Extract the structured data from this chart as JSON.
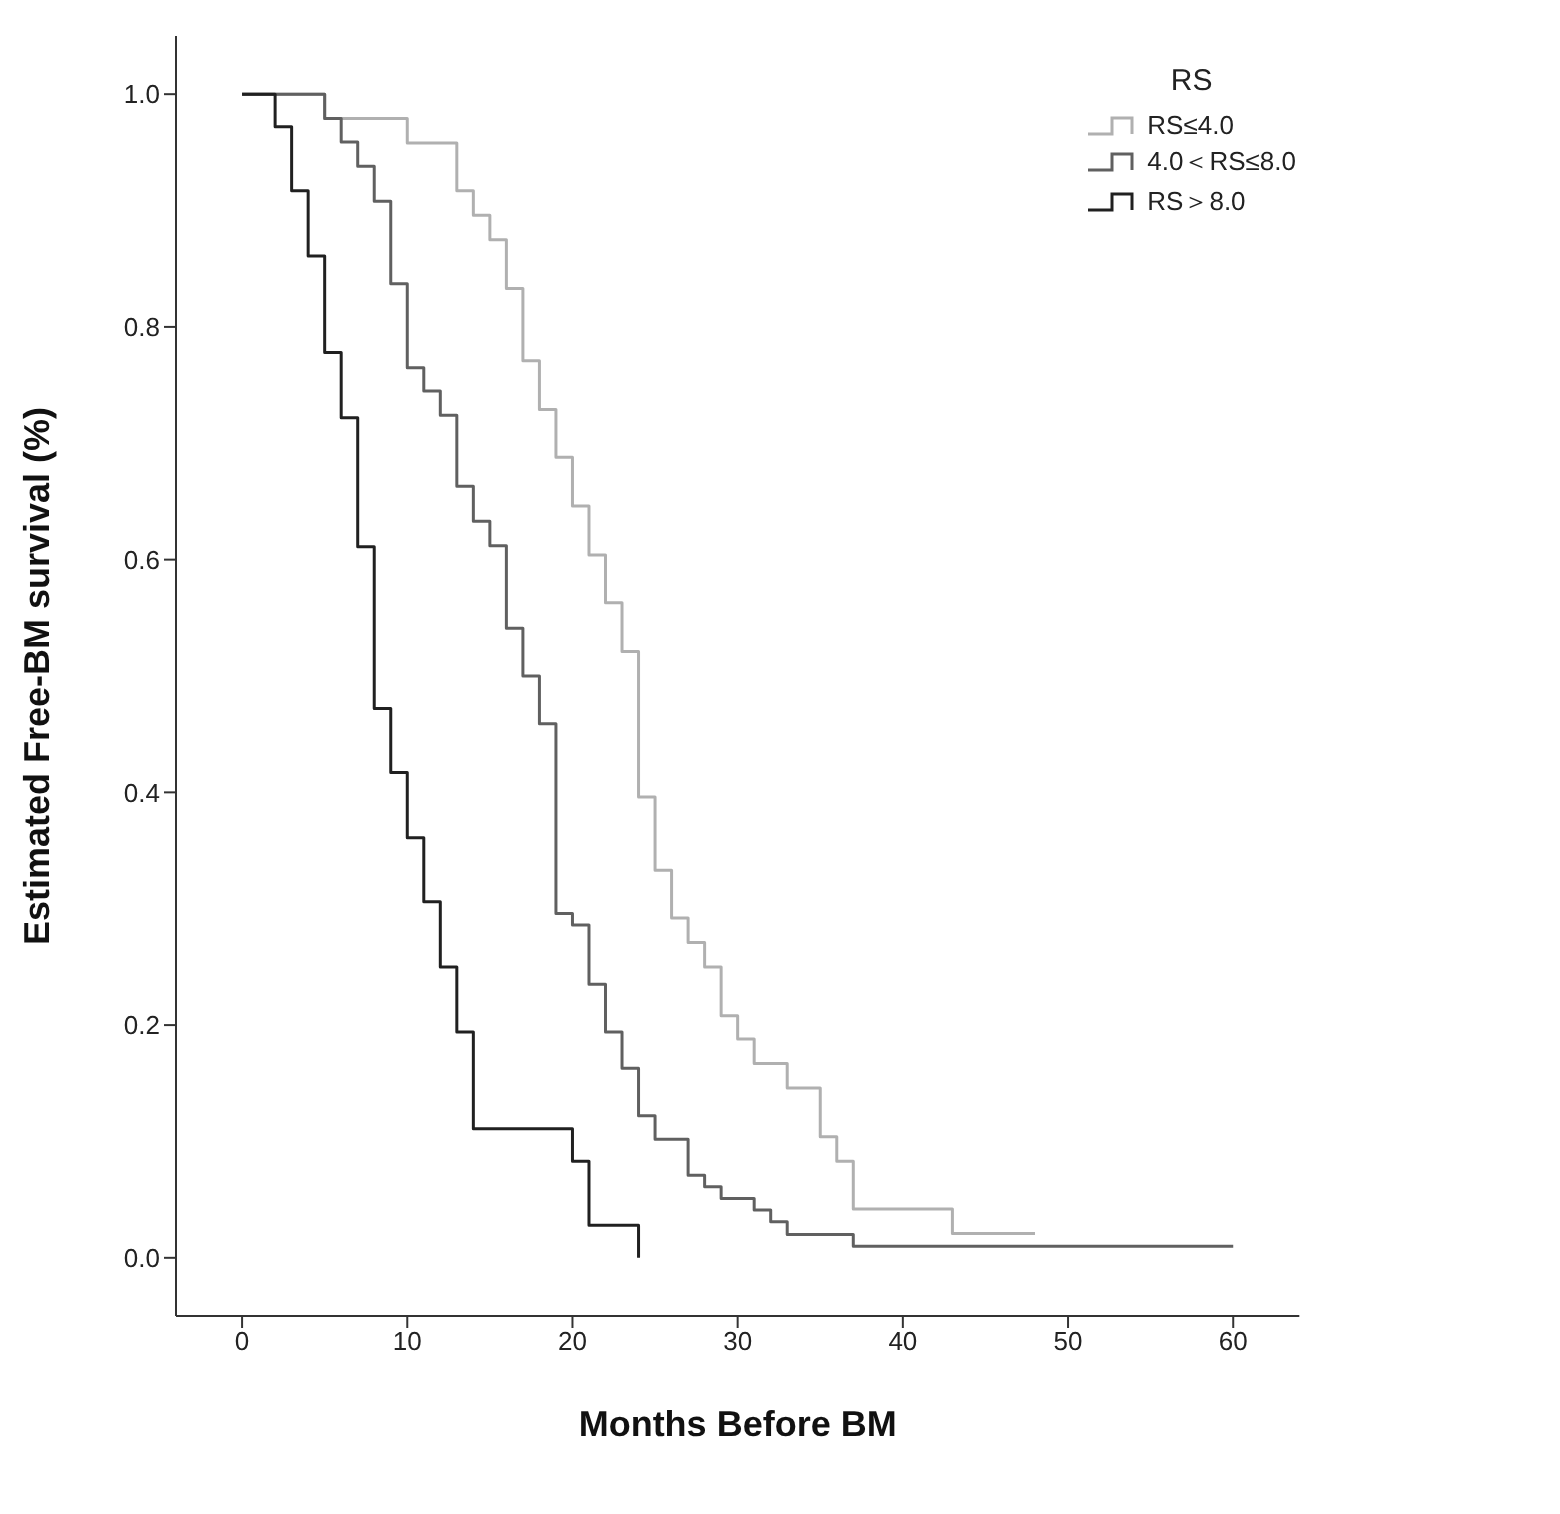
{
  "chart_data": {
    "type": "step",
    "xlabel": "Months Before BM",
    "ylabel": "Estimated Free-BM survival (%)",
    "legend_title": "RS",
    "legend": "top right",
    "grid": false,
    "marker": "none",
    "line_style": "solid",
    "xlim": [
      -4,
      64
    ],
    "xticks": [
      0,
      10,
      20,
      30,
      40,
      50,
      60
    ],
    "ylim": [
      -0.05,
      1.05
    ],
    "yticks": [
      {
        "value": 0,
        "label": "0.0"
      },
      {
        "value": 0.2,
        "label": "0.2"
      },
      {
        "value": 0.4,
        "label": "0.4"
      },
      {
        "value": 0.6,
        "label": "0.6"
      },
      {
        "value": 0.8,
        "label": "0.8"
      },
      {
        "value": 1,
        "label": "1.0"
      }
    ],
    "series": [
      {
        "name": "RS≤4.0",
        "color": "#b0b0b0",
        "x": [
          0,
          5,
          10,
          13,
          14,
          15,
          16,
          17,
          18,
          19,
          20,
          21,
          22,
          23,
          24,
          25,
          26,
          27,
          28,
          29,
          30,
          31,
          33,
          35,
          36,
          37,
          43,
          48
        ],
        "values": [
          1,
          0.979,
          0.958,
          0.917,
          0.896,
          0.875,
          0.833,
          0.771,
          0.729,
          0.688,
          0.646,
          0.604,
          0.563,
          0.521,
          0.396,
          0.333,
          0.292,
          0.271,
          0.25,
          0.208,
          0.188,
          0.167,
          0.146,
          0.104,
          0.083,
          0.042,
          0.021,
          0.021
        ]
      },
      {
        "name": "4.0＜RS≤8.0",
        "color": "#606060",
        "x": [
          0,
          5,
          6,
          7,
          8,
          9,
          10,
          11,
          12,
          13,
          14,
          15,
          16,
          17,
          18,
          19,
          20,
          21,
          22,
          23,
          24,
          25,
          27,
          28,
          29,
          31,
          32,
          33,
          37,
          60
        ],
        "values": [
          1,
          0.979,
          0.959,
          0.938,
          0.908,
          0.837,
          0.765,
          0.745,
          0.724,
          0.663,
          0.633,
          0.612,
          0.541,
          0.5,
          0.459,
          0.296,
          0.286,
          0.235,
          0.194,
          0.163,
          0.122,
          0.102,
          0.071,
          0.061,
          0.051,
          0.041,
          0.031,
          0.02,
          0.01,
          0.01
        ]
      },
      {
        "name": "RS＞8.0",
        "color": "#202020",
        "x": [
          0,
          2,
          3,
          4,
          5,
          6,
          7,
          8,
          9,
          10,
          11,
          12,
          13,
          14,
          20,
          21,
          24,
          24
        ],
        "values": [
          1,
          0.972,
          0.917,
          0.861,
          0.778,
          0.722,
          0.611,
          0.472,
          0.417,
          0.361,
          0.306,
          0.25,
          0.194,
          0.111,
          0.083,
          0.028,
          0.028,
          0
        ]
      }
    ]
  }
}
